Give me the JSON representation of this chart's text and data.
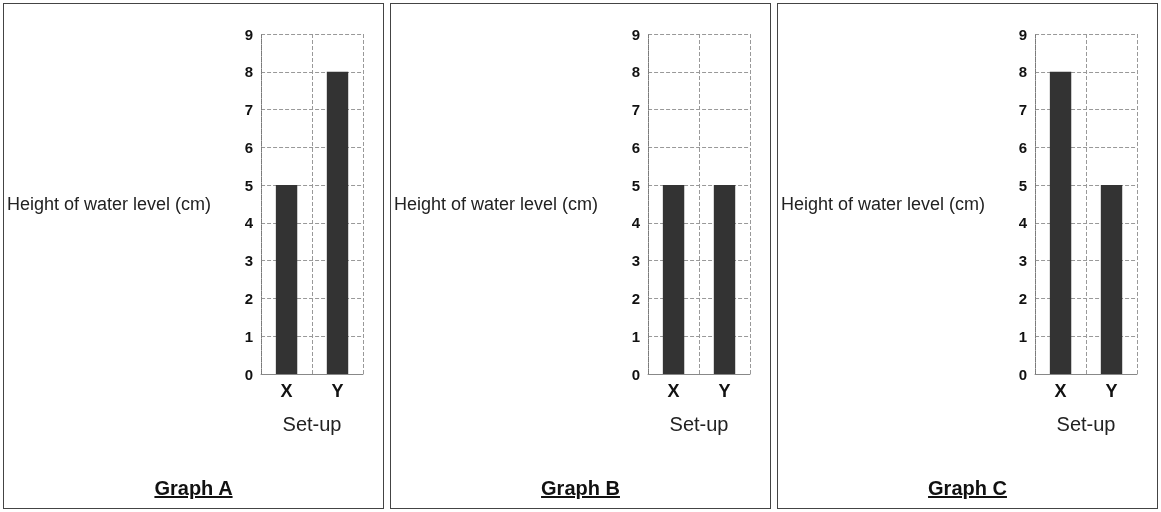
{
  "chart_data": [
    {
      "type": "bar",
      "title": "Graph A",
      "xlabel": "Set-up",
      "ylabel": "Height of water level (cm)",
      "categories": [
        "X",
        "Y"
      ],
      "values": [
        5,
        8
      ],
      "color": "#333333",
      "ylim": [
        0,
        9
      ],
      "yticks": [
        0,
        1,
        2,
        3,
        4,
        5,
        6,
        7,
        8,
        9
      ],
      "grid": true
    },
    {
      "type": "bar",
      "title": "Graph B",
      "xlabel": "Set-up",
      "ylabel": "Height of water level (cm)",
      "categories": [
        "X",
        "Y"
      ],
      "values": [
        5,
        5
      ],
      "color": "#333333",
      "ylim": [
        0,
        9
      ],
      "yticks": [
        0,
        1,
        2,
        3,
        4,
        5,
        6,
        7,
        8,
        9
      ],
      "grid": true
    },
    {
      "type": "bar",
      "title": "Graph C",
      "xlabel": "Set-up",
      "ylabel": "Height of water level (cm)",
      "categories": [
        "X",
        "Y"
      ],
      "values": [
        8,
        5
      ],
      "color": "#333333",
      "ylim": [
        0,
        9
      ],
      "yticks": [
        0,
        1,
        2,
        3,
        4,
        5,
        6,
        7,
        8,
        9
      ],
      "grid": true
    }
  ]
}
